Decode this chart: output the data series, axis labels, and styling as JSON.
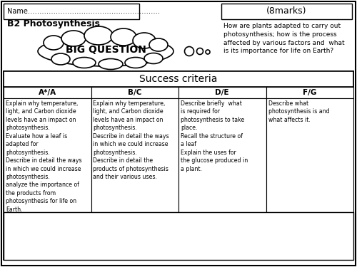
{
  "title": "B2 Photosynthesis",
  "name_label": "Name…………………………………………………",
  "marks_label": "(8marks)",
  "big_question": "BIG QUESTION",
  "question_text": "How are plants adapted to carry out\nphotosynthesis; how is the process\naffected by various factors and  what\nis its importance for life on Earth?",
  "success_criteria_title": "Success criteria",
  "columns": [
    "A*/A",
    "B/C",
    "D/E",
    "F/G"
  ],
  "col_texts": [
    "Explain why temperature,\nlight, and Carbon dioxide\nlevels have an impact on\nphotosynthesis.\nEvaluate how a leaf is\nadapted for\nphotosynthesis.\nDescribe in detail the ways\nin which we could increase\nphotosynthesis.\nanalyze the importance of\nthe products from\nphotosynthesis for life on\nEarth.",
    "Explain why temperature,\nlight, and Carbon dioxide\nlevels have an impact on\nphotosynthesis.\nDescribe in detail the ways\nin which we could increase\nphotosynthesis.\nDescribe in detail the\nproducts of photosynthesis\nand their various uses.",
    "Describe briefly  what\nis required for\nphotosynthesis to take\nplace.\nRecall the structure of\na leaf\nExplain the uses for\nthe glucose produced in\na plant.",
    "Describe what\nphotosynthesis is and\nwhat affects it."
  ],
  "bg_color": "#ffffff",
  "border_color": "#000000"
}
